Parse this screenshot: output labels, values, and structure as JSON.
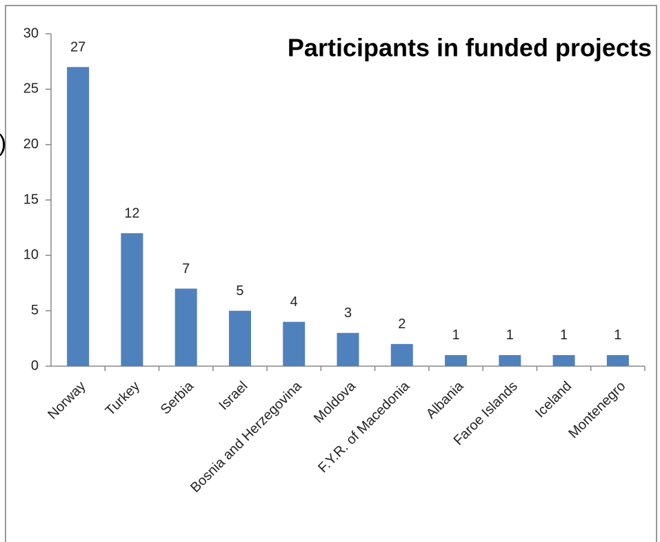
{
  "chart_data": {
    "type": "bar",
    "title": "Participants in funded projects",
    "annotations": [
      ")"
    ],
    "categories": [
      "Norway",
      "Turkey",
      "Serbia",
      "Israel",
      "Bosnia and Herzegovina",
      "Moldova",
      "F.Y.R. of Macedonia",
      "Albania",
      "Faroe Islands",
      "Iceland",
      "Montenegro"
    ],
    "values": [
      27,
      12,
      7,
      5,
      4,
      3,
      2,
      1,
      1,
      1,
      1
    ],
    "color": "#4f81bd",
    "ylim": [
      0,
      30
    ],
    "yticks": [
      0,
      5,
      10,
      15,
      20,
      25,
      30
    ],
    "grid": false
  }
}
